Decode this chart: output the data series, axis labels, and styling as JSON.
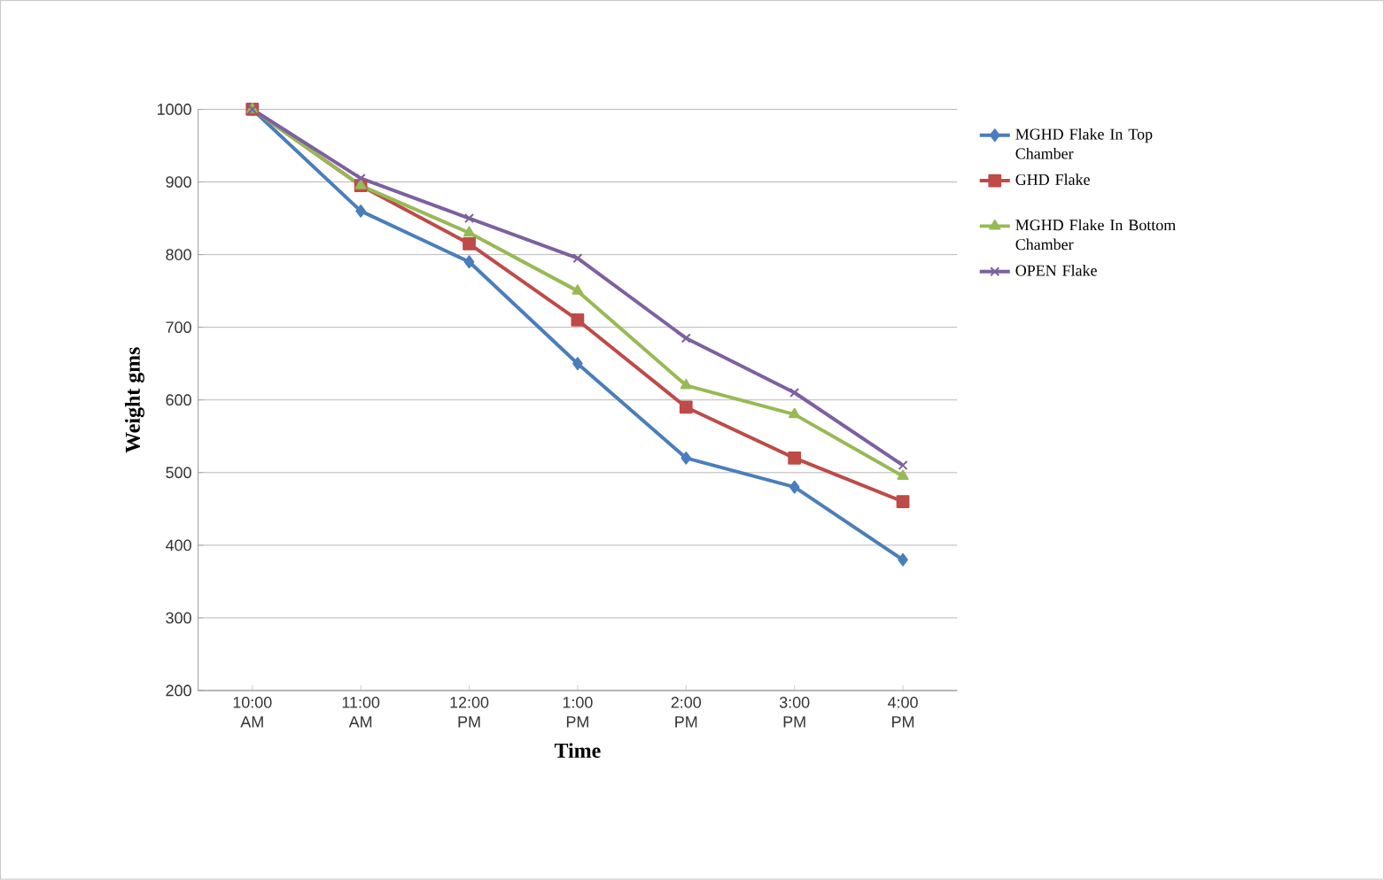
{
  "chart_data": {
    "type": "line",
    "xlabel": "Time",
    "ylabel": "Weight gms",
    "categories": [
      "10:00 AM",
      "11:00 AM",
      "12:00 PM",
      "1:00 PM",
      "2:00 PM",
      "3:00 PM",
      "4:00 PM"
    ],
    "series": [
      {
        "name": "MGHD Flake In Top Chamber",
        "color": "#4a7ebb",
        "marker": "diamond",
        "values": [
          1000,
          860,
          790,
          650,
          520,
          480,
          380
        ]
      },
      {
        "name": "GHD Flake",
        "color": "#be4b48",
        "marker": "square",
        "values": [
          1000,
          895,
          815,
          710,
          590,
          520,
          460
        ]
      },
      {
        "name": "MGHD Flake In Bottom Chamber",
        "color": "#98b954",
        "marker": "triangle",
        "values": [
          1000,
          895,
          830,
          750,
          620,
          580,
          495
        ]
      },
      {
        "name": "OPEN Flake",
        "color": "#7d60a0",
        "marker": "cross",
        "values": [
          1000,
          905,
          850,
          795,
          685,
          610,
          510
        ]
      }
    ],
    "ylim": [
      200,
      1000
    ],
    "yticks": [
      200,
      300,
      400,
      500,
      600,
      700,
      800,
      900,
      1000
    ],
    "grid": "y",
    "legend": "right"
  }
}
